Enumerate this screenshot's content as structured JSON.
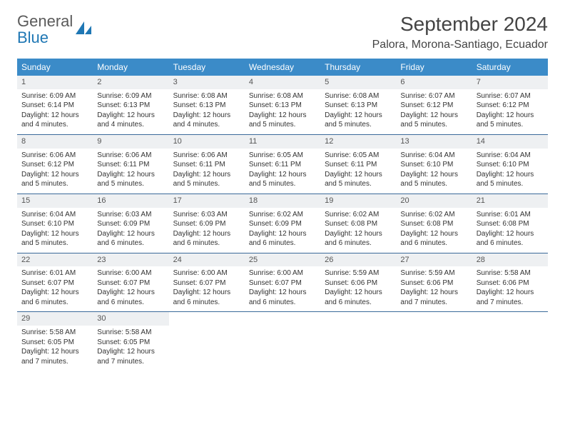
{
  "brand": {
    "name_line1": "General",
    "name_line2": "Blue"
  },
  "title": "September 2024",
  "location": "Palora, Morona-Santiago, Ecuador",
  "colors": {
    "header_bg": "#3b8bc8",
    "header_text": "#ffffff",
    "row_divider": "#3b6a9a",
    "daynum_bg": "#eef0f2",
    "body_text": "#333333",
    "brand_gray": "#5a5a5a",
    "brand_blue": "#1f77b4"
  },
  "day_headers": [
    "Sunday",
    "Monday",
    "Tuesday",
    "Wednesday",
    "Thursday",
    "Friday",
    "Saturday"
  ],
  "weeks": [
    [
      {
        "n": "1",
        "sr": "6:09 AM",
        "ss": "6:14 PM",
        "dl": "12 hours and 4 minutes."
      },
      {
        "n": "2",
        "sr": "6:09 AM",
        "ss": "6:13 PM",
        "dl": "12 hours and 4 minutes."
      },
      {
        "n": "3",
        "sr": "6:08 AM",
        "ss": "6:13 PM",
        "dl": "12 hours and 4 minutes."
      },
      {
        "n": "4",
        "sr": "6:08 AM",
        "ss": "6:13 PM",
        "dl": "12 hours and 5 minutes."
      },
      {
        "n": "5",
        "sr": "6:08 AM",
        "ss": "6:13 PM",
        "dl": "12 hours and 5 minutes."
      },
      {
        "n": "6",
        "sr": "6:07 AM",
        "ss": "6:12 PM",
        "dl": "12 hours and 5 minutes."
      },
      {
        "n": "7",
        "sr": "6:07 AM",
        "ss": "6:12 PM",
        "dl": "12 hours and 5 minutes."
      }
    ],
    [
      {
        "n": "8",
        "sr": "6:06 AM",
        "ss": "6:12 PM",
        "dl": "12 hours and 5 minutes."
      },
      {
        "n": "9",
        "sr": "6:06 AM",
        "ss": "6:11 PM",
        "dl": "12 hours and 5 minutes."
      },
      {
        "n": "10",
        "sr": "6:06 AM",
        "ss": "6:11 PM",
        "dl": "12 hours and 5 minutes."
      },
      {
        "n": "11",
        "sr": "6:05 AM",
        "ss": "6:11 PM",
        "dl": "12 hours and 5 minutes."
      },
      {
        "n": "12",
        "sr": "6:05 AM",
        "ss": "6:11 PM",
        "dl": "12 hours and 5 minutes."
      },
      {
        "n": "13",
        "sr": "6:04 AM",
        "ss": "6:10 PM",
        "dl": "12 hours and 5 minutes."
      },
      {
        "n": "14",
        "sr": "6:04 AM",
        "ss": "6:10 PM",
        "dl": "12 hours and 5 minutes."
      }
    ],
    [
      {
        "n": "15",
        "sr": "6:04 AM",
        "ss": "6:10 PM",
        "dl": "12 hours and 5 minutes."
      },
      {
        "n": "16",
        "sr": "6:03 AM",
        "ss": "6:09 PM",
        "dl": "12 hours and 6 minutes."
      },
      {
        "n": "17",
        "sr": "6:03 AM",
        "ss": "6:09 PM",
        "dl": "12 hours and 6 minutes."
      },
      {
        "n": "18",
        "sr": "6:02 AM",
        "ss": "6:09 PM",
        "dl": "12 hours and 6 minutes."
      },
      {
        "n": "19",
        "sr": "6:02 AM",
        "ss": "6:08 PM",
        "dl": "12 hours and 6 minutes."
      },
      {
        "n": "20",
        "sr": "6:02 AM",
        "ss": "6:08 PM",
        "dl": "12 hours and 6 minutes."
      },
      {
        "n": "21",
        "sr": "6:01 AM",
        "ss": "6:08 PM",
        "dl": "12 hours and 6 minutes."
      }
    ],
    [
      {
        "n": "22",
        "sr": "6:01 AM",
        "ss": "6:07 PM",
        "dl": "12 hours and 6 minutes."
      },
      {
        "n": "23",
        "sr": "6:00 AM",
        "ss": "6:07 PM",
        "dl": "12 hours and 6 minutes."
      },
      {
        "n": "24",
        "sr": "6:00 AM",
        "ss": "6:07 PM",
        "dl": "12 hours and 6 minutes."
      },
      {
        "n": "25",
        "sr": "6:00 AM",
        "ss": "6:07 PM",
        "dl": "12 hours and 6 minutes."
      },
      {
        "n": "26",
        "sr": "5:59 AM",
        "ss": "6:06 PM",
        "dl": "12 hours and 6 minutes."
      },
      {
        "n": "27",
        "sr": "5:59 AM",
        "ss": "6:06 PM",
        "dl": "12 hours and 7 minutes."
      },
      {
        "n": "28",
        "sr": "5:58 AM",
        "ss": "6:06 PM",
        "dl": "12 hours and 7 minutes."
      }
    ],
    [
      {
        "n": "29",
        "sr": "5:58 AM",
        "ss": "6:05 PM",
        "dl": "12 hours and 7 minutes."
      },
      {
        "n": "30",
        "sr": "5:58 AM",
        "ss": "6:05 PM",
        "dl": "12 hours and 7 minutes."
      },
      {
        "empty": true
      },
      {
        "empty": true
      },
      {
        "empty": true
      },
      {
        "empty": true
      },
      {
        "empty": true
      }
    ]
  ],
  "labels": {
    "sunrise_prefix": "Sunrise: ",
    "sunset_prefix": "Sunset: ",
    "daylight_prefix": "Daylight: "
  }
}
